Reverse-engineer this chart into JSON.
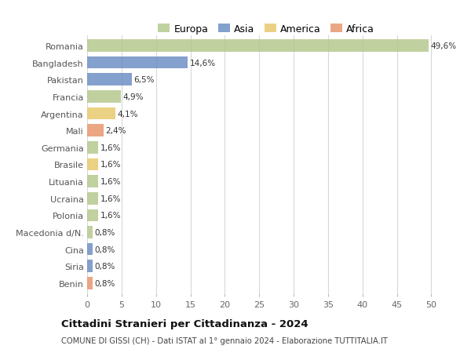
{
  "categories": [
    "Romania",
    "Bangladesh",
    "Pakistan",
    "Francia",
    "Argentina",
    "Mali",
    "Germania",
    "Brasile",
    "Lituania",
    "Ucraina",
    "Polonia",
    "Macedonia d/N.",
    "Cina",
    "Siria",
    "Benin"
  ],
  "values": [
    49.6,
    14.6,
    6.5,
    4.9,
    4.1,
    2.4,
    1.6,
    1.6,
    1.6,
    1.6,
    1.6,
    0.8,
    0.8,
    0.8,
    0.8
  ],
  "labels": [
    "49,6%",
    "14,6%",
    "6,5%",
    "4,9%",
    "4,1%",
    "2,4%",
    "1,6%",
    "1,6%",
    "1,6%",
    "1,6%",
    "1,6%",
    "0,8%",
    "0,8%",
    "0,8%",
    "0,8%"
  ],
  "colors": [
    "#b5c98e",
    "#6e8fc4",
    "#6e8fc4",
    "#b5c98e",
    "#e8c96e",
    "#e8976e",
    "#b5c98e",
    "#e8c96e",
    "#b5c98e",
    "#b5c98e",
    "#b5c98e",
    "#b5c98e",
    "#6e8fc4",
    "#6e8fc4",
    "#e8976e"
  ],
  "legend_labels": [
    "Europa",
    "Asia",
    "America",
    "Africa"
  ],
  "legend_colors": [
    "#b5c98e",
    "#6e8fc4",
    "#e8c96e",
    "#e8976e"
  ],
  "title": "Cittadini Stranieri per Cittadinanza - 2024",
  "subtitle": "COMUNE DI GISSI (CH) - Dati ISTAT al 1° gennaio 2024 - Elaborazione TUTTITALIA.IT",
  "xlim": [
    0,
    52
  ],
  "xticks": [
    0,
    5,
    10,
    15,
    20,
    25,
    30,
    35,
    40,
    45,
    50
  ],
  "bg_color": "#ffffff",
  "grid_color": "#d8d8d8",
  "bar_height": 0.72
}
